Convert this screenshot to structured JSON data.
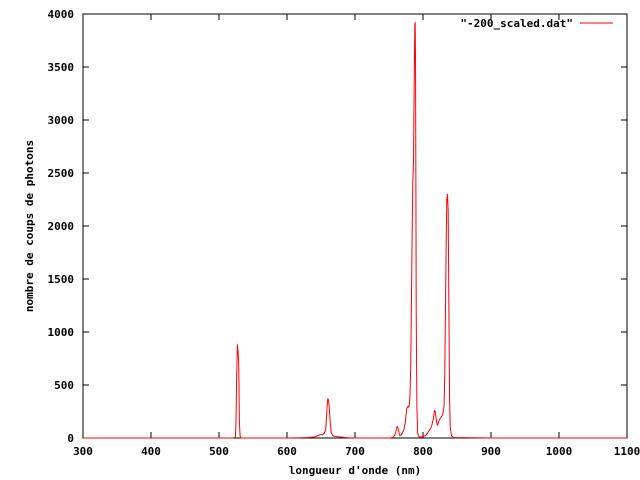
{
  "chart_data": {
    "type": "line",
    "title": "",
    "xlabel": "longueur d'onde (nm)",
    "ylabel": "nombre de coups de photons",
    "xlim": [
      300,
      1100
    ],
    "ylim": [
      0,
      4000
    ],
    "x_ticks": [
      300,
      400,
      500,
      600,
      700,
      800,
      900,
      1000,
      1100
    ],
    "y_ticks": [
      0,
      500,
      1000,
      1500,
      2000,
      2500,
      3000,
      3500,
      4000
    ],
    "grid": false,
    "legend_position": "top-right",
    "series": [
      {
        "name": "\"-200_scaled.dat\"",
        "color": "#ff0000",
        "x": [
          300,
          520,
          524,
          525,
          526,
          527,
          528,
          529,
          530,
          531,
          532,
          600,
          620,
          630,
          640,
          645,
          648,
          650,
          652,
          654,
          656,
          657,
          658,
          659,
          660,
          661,
          662,
          663,
          664,
          665,
          668,
          670,
          675,
          680,
          685,
          690,
          700,
          720,
          750,
          755,
          758,
          760,
          761,
          762,
          763,
          764,
          765,
          766,
          768,
          770,
          772,
          774,
          776,
          778,
          779,
          780,
          781,
          782,
          783,
          784,
          785,
          786,
          787,
          788,
          788.5,
          789,
          789.5,
          790,
          791,
          792,
          793,
          794,
          795,
          797,
          800,
          803,
          806,
          808,
          810,
          812,
          813,
          814,
          815,
          816,
          817,
          818,
          819,
          820,
          821,
          822,
          823,
          824,
          825,
          827,
          829,
          831,
          832,
          833,
          834,
          835,
          836,
          837,
          838,
          839,
          840,
          842,
          845,
          900,
          1100
        ],
        "y": [
          0,
          0,
          5,
          150,
          580,
          880,
          820,
          700,
          150,
          20,
          0,
          0,
          2,
          5,
          10,
          20,
          30,
          35,
          30,
          40,
          60,
          90,
          180,
          300,
          370,
          360,
          300,
          200,
          120,
          50,
          20,
          15,
          12,
          10,
          5,
          2,
          0,
          0,
          0,
          5,
          20,
          60,
          90,
          110,
          100,
          70,
          40,
          20,
          30,
          50,
          80,
          150,
          280,
          300,
          290,
          320,
          420,
          700,
          1300,
          1900,
          2400,
          2600,
          3300,
          3900,
          3920,
          3600,
          2500,
          1200,
          300,
          60,
          20,
          15,
          10,
          10,
          15,
          20,
          40,
          60,
          80,
          100,
          120,
          150,
          180,
          220,
          260,
          250,
          200,
          150,
          120,
          130,
          150,
          170,
          180,
          200,
          220,
          300,
          600,
          1200,
          1800,
          2250,
          2300,
          2150,
          1300,
          400,
          100,
          20,
          5,
          0,
          0
        ]
      }
    ]
  }
}
